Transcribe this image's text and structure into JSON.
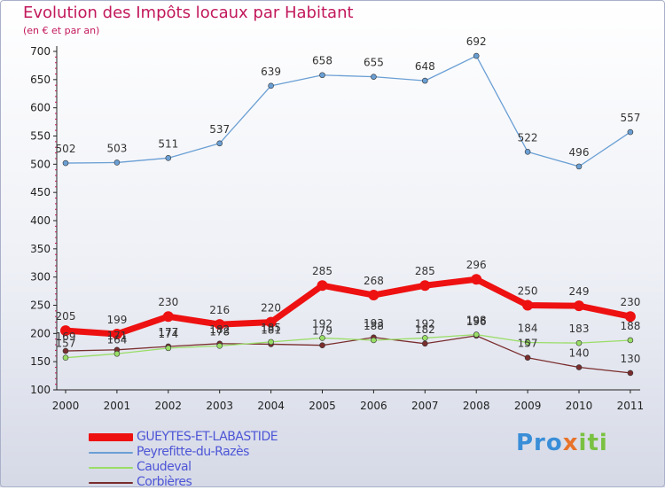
{
  "title": "Evolution des Impôts locaux par Habitant",
  "subtitle": "(en € et par an)",
  "logo": {
    "part1": "Pro",
    "part2": "x",
    "part3": "iti"
  },
  "chart_data": {
    "type": "line",
    "x": [
      "2000",
      "2001",
      "2002",
      "2003",
      "2004",
      "2005",
      "2006",
      "2007",
      "2008",
      "2009",
      "2010",
      "2011"
    ],
    "ylim": [
      100,
      700
    ],
    "yticks": [
      100,
      150,
      200,
      250,
      300,
      350,
      400,
      450,
      500,
      550,
      600,
      650,
      700
    ],
    "grid": false,
    "legend_position": "bottom-left",
    "series": [
      {
        "name": "GUEYTES-ET-LABASTIDE",
        "color": "#ee1111",
        "width": 7,
        "values": [
          205,
          199,
          230,
          216,
          220,
          285,
          268,
          285,
          296,
          250,
          249,
          230
        ]
      },
      {
        "name": "Peyrefitte-du-Razès",
        "color": "#6a9fd4",
        "width": 1.3,
        "values": [
          502,
          503,
          511,
          537,
          639,
          658,
          655,
          648,
          692,
          522,
          496,
          557
        ]
      },
      {
        "name": "Caudeval",
        "color": "#99dd66",
        "width": 1.3,
        "values": [
          157,
          164,
          174,
          178,
          185,
          192,
          188,
          192,
          198,
          184,
          183,
          188
        ]
      },
      {
        "name": "Corbières",
        "color": "#7a2d2d",
        "width": 1.3,
        "values": [
          169,
          171,
          177,
          182,
          181,
          179,
          193,
          182,
          196,
          157,
          140,
          130
        ]
      }
    ]
  }
}
